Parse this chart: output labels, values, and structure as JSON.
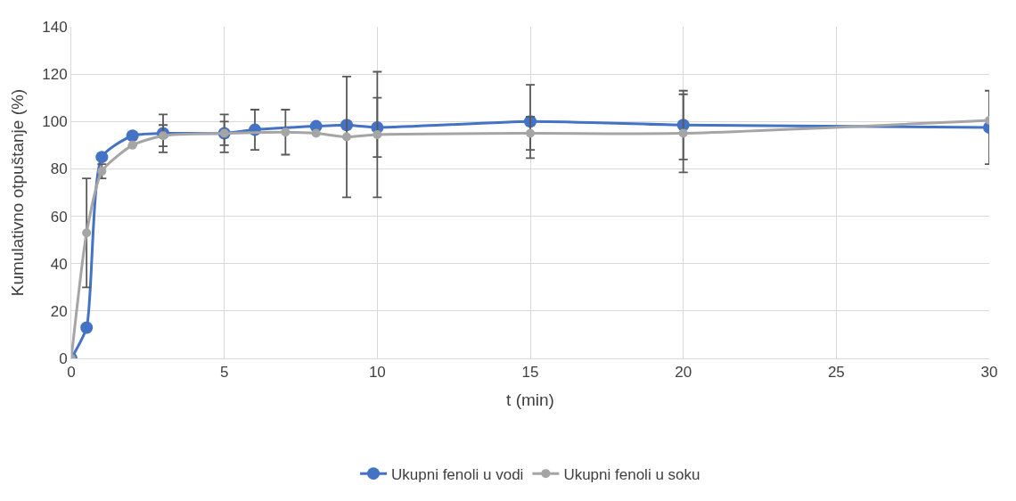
{
  "chart_data": {
    "type": "line",
    "xlabel": "t (min)",
    "ylabel": "Kumulativno otpuštanje (%)",
    "xlim": [
      0,
      30
    ],
    "xticks": [
      0,
      5,
      10,
      15,
      20,
      25,
      30
    ],
    "ylim": [
      0,
      140
    ],
    "yticks": [
      0,
      20,
      40,
      60,
      80,
      100,
      120,
      140
    ],
    "grid": true,
    "legend": "bottom",
    "marker": "circle",
    "line_style": "solid",
    "series": [
      {
        "name": "Ukupni fenoli u vodi",
        "color": "#4472c4",
        "x": [
          0,
          0.5,
          1,
          2,
          3,
          5,
          6,
          8,
          9,
          10,
          15,
          20,
          30
        ],
        "values": [
          0,
          13,
          85,
          94,
          95,
          95,
          96.5,
          98,
          98.5,
          97.5,
          100,
          98.5,
          97.5
        ],
        "errors": [
          null,
          null,
          null,
          null,
          8,
          8,
          8.5,
          null,
          null,
          12.5,
          15.5,
          14.5,
          15.5
        ]
      },
      {
        "name": "Ukupni fenoli u soku",
        "color": "#a5a5a5",
        "x": [
          0,
          0.5,
          1,
          2,
          3,
          5,
          7,
          8,
          9,
          10,
          15,
          20,
          30
        ],
        "values": [
          0,
          53,
          79,
          90,
          94,
          95,
          95.5,
          95,
          93.5,
          94.5,
          95,
          95,
          100.5
        ],
        "errors": [
          null,
          23,
          3,
          null,
          4.5,
          5,
          9.5,
          null,
          25.5,
          26.5,
          7,
          16.5,
          null
        ]
      }
    ]
  }
}
